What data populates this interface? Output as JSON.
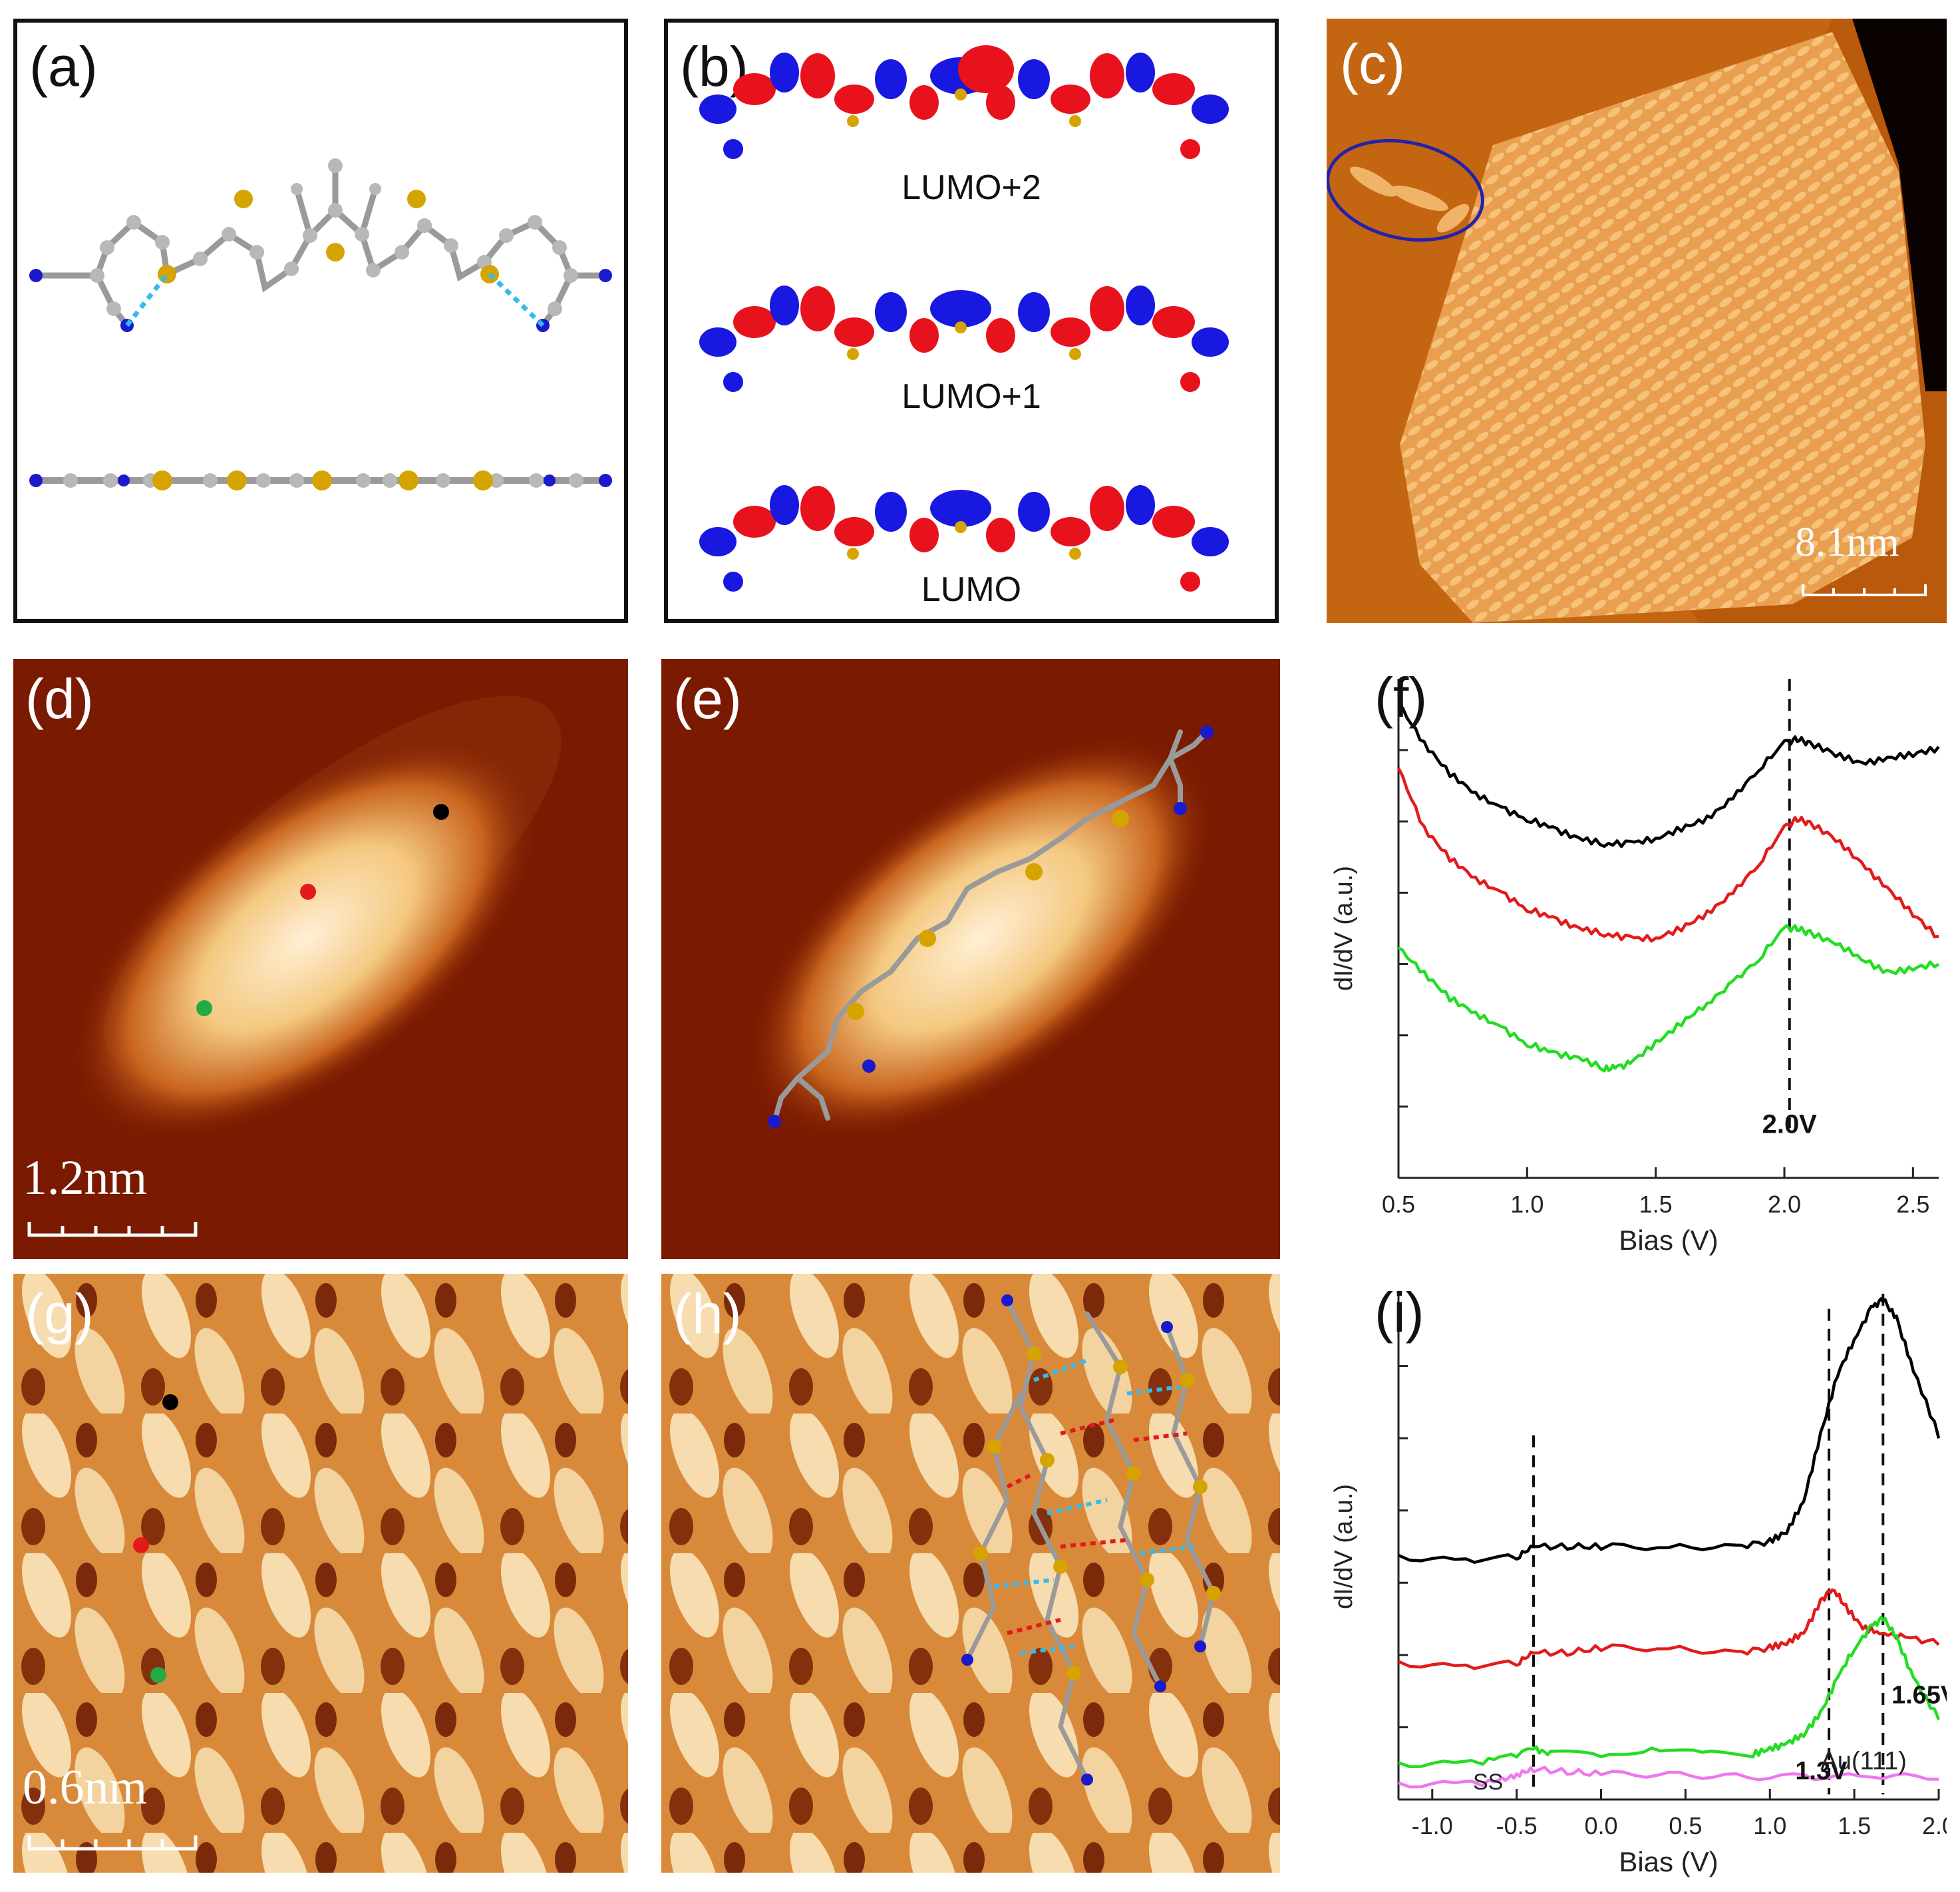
{
  "panels": {
    "a": {
      "label": "(a)"
    },
    "b": {
      "label": "(b)",
      "orbitals": [
        "LUMO+2",
        "LUMO+1",
        "LUMO"
      ]
    },
    "c": {
      "label": "(c)",
      "scale_bar": "8.1nm"
    },
    "d": {
      "label": "(d)",
      "scale_bar": "1.2nm"
    },
    "e": {
      "label": "(e)"
    },
    "f": {
      "label": "(f)"
    },
    "g": {
      "label": "(g)",
      "scale_bar": "0.6nm"
    },
    "h": {
      "label": "(h)"
    },
    "i": {
      "label": "(i)"
    }
  },
  "colors": {
    "black_curve": "#000000",
    "red_curve": "#e31a1c",
    "green_curve": "#22dd22",
    "pink_curve": "#ee77ee",
    "orbital_red": "#e8121c",
    "orbital_blue": "#1818e0",
    "sulfur": "#d6a400",
    "nitrogen": "#1a1acc",
    "carbon": "#9a9a9a"
  },
  "chart_data": [
    {
      "panel": "f",
      "type": "line",
      "xlabel": "Bias (V)",
      "ylabel": "dI/dV (a.u.)",
      "xlim": [
        0.5,
        2.6
      ],
      "ylim": [
        0,
        1
      ],
      "xticks": [
        "0.5",
        "1.0",
        "1.5",
        "2.0",
        "2.5"
      ],
      "annotations": [
        {
          "text": "2.0V",
          "x": 2.02
        }
      ],
      "series": [
        {
          "name": "black",
          "x": [
            0.5,
            0.6,
            0.7,
            0.8,
            0.9,
            1.0,
            1.1,
            1.2,
            1.3,
            1.4,
            1.5,
            1.6,
            1.7,
            1.8,
            1.9,
            2.0,
            2.05,
            2.1,
            2.2,
            2.3,
            2.4,
            2.5,
            2.6
          ],
          "y": [
            0.95,
            0.87,
            0.81,
            0.77,
            0.74,
            0.72,
            0.7,
            0.68,
            0.67,
            0.67,
            0.68,
            0.7,
            0.72,
            0.76,
            0.82,
            0.87,
            0.88,
            0.87,
            0.85,
            0.83,
            0.84,
            0.85,
            0.86
          ]
        },
        {
          "name": "red",
          "x": [
            0.5,
            0.6,
            0.7,
            0.8,
            0.9,
            1.0,
            1.1,
            1.2,
            1.3,
            1.4,
            1.5,
            1.6,
            1.7,
            1.8,
            1.9,
            2.0,
            2.05,
            2.1,
            2.2,
            2.3,
            2.4,
            2.5,
            2.6
          ],
          "y": [
            0.82,
            0.7,
            0.64,
            0.6,
            0.57,
            0.54,
            0.52,
            0.5,
            0.49,
            0.48,
            0.48,
            0.5,
            0.53,
            0.57,
            0.63,
            0.7,
            0.72,
            0.71,
            0.68,
            0.63,
            0.58,
            0.53,
            0.48
          ]
        },
        {
          "name": "green",
          "x": [
            0.5,
            0.6,
            0.7,
            0.8,
            0.9,
            1.0,
            1.1,
            1.2,
            1.3,
            1.35,
            1.4,
            1.5,
            1.6,
            1.7,
            1.8,
            1.9,
            2.0,
            2.05,
            2.1,
            2.2,
            2.3,
            2.4,
            2.5,
            2.6
          ],
          "y": [
            0.46,
            0.41,
            0.36,
            0.33,
            0.3,
            0.27,
            0.25,
            0.24,
            0.22,
            0.22,
            0.23,
            0.27,
            0.31,
            0.35,
            0.39,
            0.44,
            0.5,
            0.5,
            0.49,
            0.47,
            0.44,
            0.41,
            0.42,
            0.43
          ]
        }
      ]
    },
    {
      "panel": "i",
      "type": "line",
      "xlabel": "Bias (V)",
      "ylabel": "dI/dV (a.u.)",
      "xlim": [
        -1.2,
        2.0
      ],
      "ylim": [
        0,
        1
      ],
      "xticks": [
        "-1.0",
        "-0.5",
        "0.0",
        "0.5",
        "1.0",
        "1.5",
        "2.0"
      ],
      "annotations": [
        {
          "text": "1.65V",
          "x": 1.67
        },
        {
          "text": "1.3V",
          "x": 1.35
        },
        {
          "text": "SS",
          "x": -0.4
        }
      ],
      "series": [
        {
          "name": "black",
          "x": [
            -1.2,
            -0.8,
            -0.5,
            -0.4,
            -0.2,
            0.0,
            0.4,
            0.8,
            1.0,
            1.1,
            1.2,
            1.3,
            1.4,
            1.5,
            1.6,
            1.67,
            1.75,
            1.85,
            2.0
          ],
          "y": [
            0.48,
            0.47,
            0.48,
            0.5,
            0.5,
            0.5,
            0.5,
            0.5,
            0.51,
            0.53,
            0.59,
            0.72,
            0.84,
            0.91,
            0.97,
            0.99,
            0.95,
            0.85,
            0.72
          ]
        },
        {
          "name": "red",
          "x": [
            -1.2,
            -0.8,
            -0.5,
            -0.4,
            -0.2,
            0.0,
            0.4,
            0.8,
            1.0,
            1.1,
            1.2,
            1.3,
            1.37,
            1.45,
            1.55,
            1.65,
            1.8,
            2.0
          ],
          "y": [
            0.27,
            0.26,
            0.27,
            0.29,
            0.29,
            0.3,
            0.3,
            0.29,
            0.3,
            0.31,
            0.33,
            0.39,
            0.42,
            0.38,
            0.34,
            0.33,
            0.32,
            0.31
          ]
        },
        {
          "name": "green",
          "x": [
            -1.2,
            -0.8,
            -0.6,
            -0.4,
            -0.3,
            0.0,
            0.3,
            0.6,
            0.9,
            1.0,
            1.1,
            1.2,
            1.3,
            1.4,
            1.5,
            1.6,
            1.67,
            1.75,
            1.85,
            2.0
          ],
          "y": [
            0.07,
            0.07,
            0.08,
            0.1,
            0.09,
            0.09,
            0.1,
            0.09,
            0.09,
            0.1,
            0.11,
            0.13,
            0.17,
            0.24,
            0.3,
            0.34,
            0.36,
            0.32,
            0.24,
            0.16
          ]
        },
        {
          "name": "Au(111)",
          "x": [
            -1.2,
            -0.8,
            -0.6,
            -0.5,
            -0.4,
            -0.2,
            0.0,
            0.4,
            0.8,
            1.2,
            1.6,
            2.0
          ],
          "y": [
            0.03,
            0.03,
            0.035,
            0.05,
            0.06,
            0.055,
            0.05,
            0.05,
            0.045,
            0.045,
            0.045,
            0.045
          ]
        }
      ]
    }
  ]
}
